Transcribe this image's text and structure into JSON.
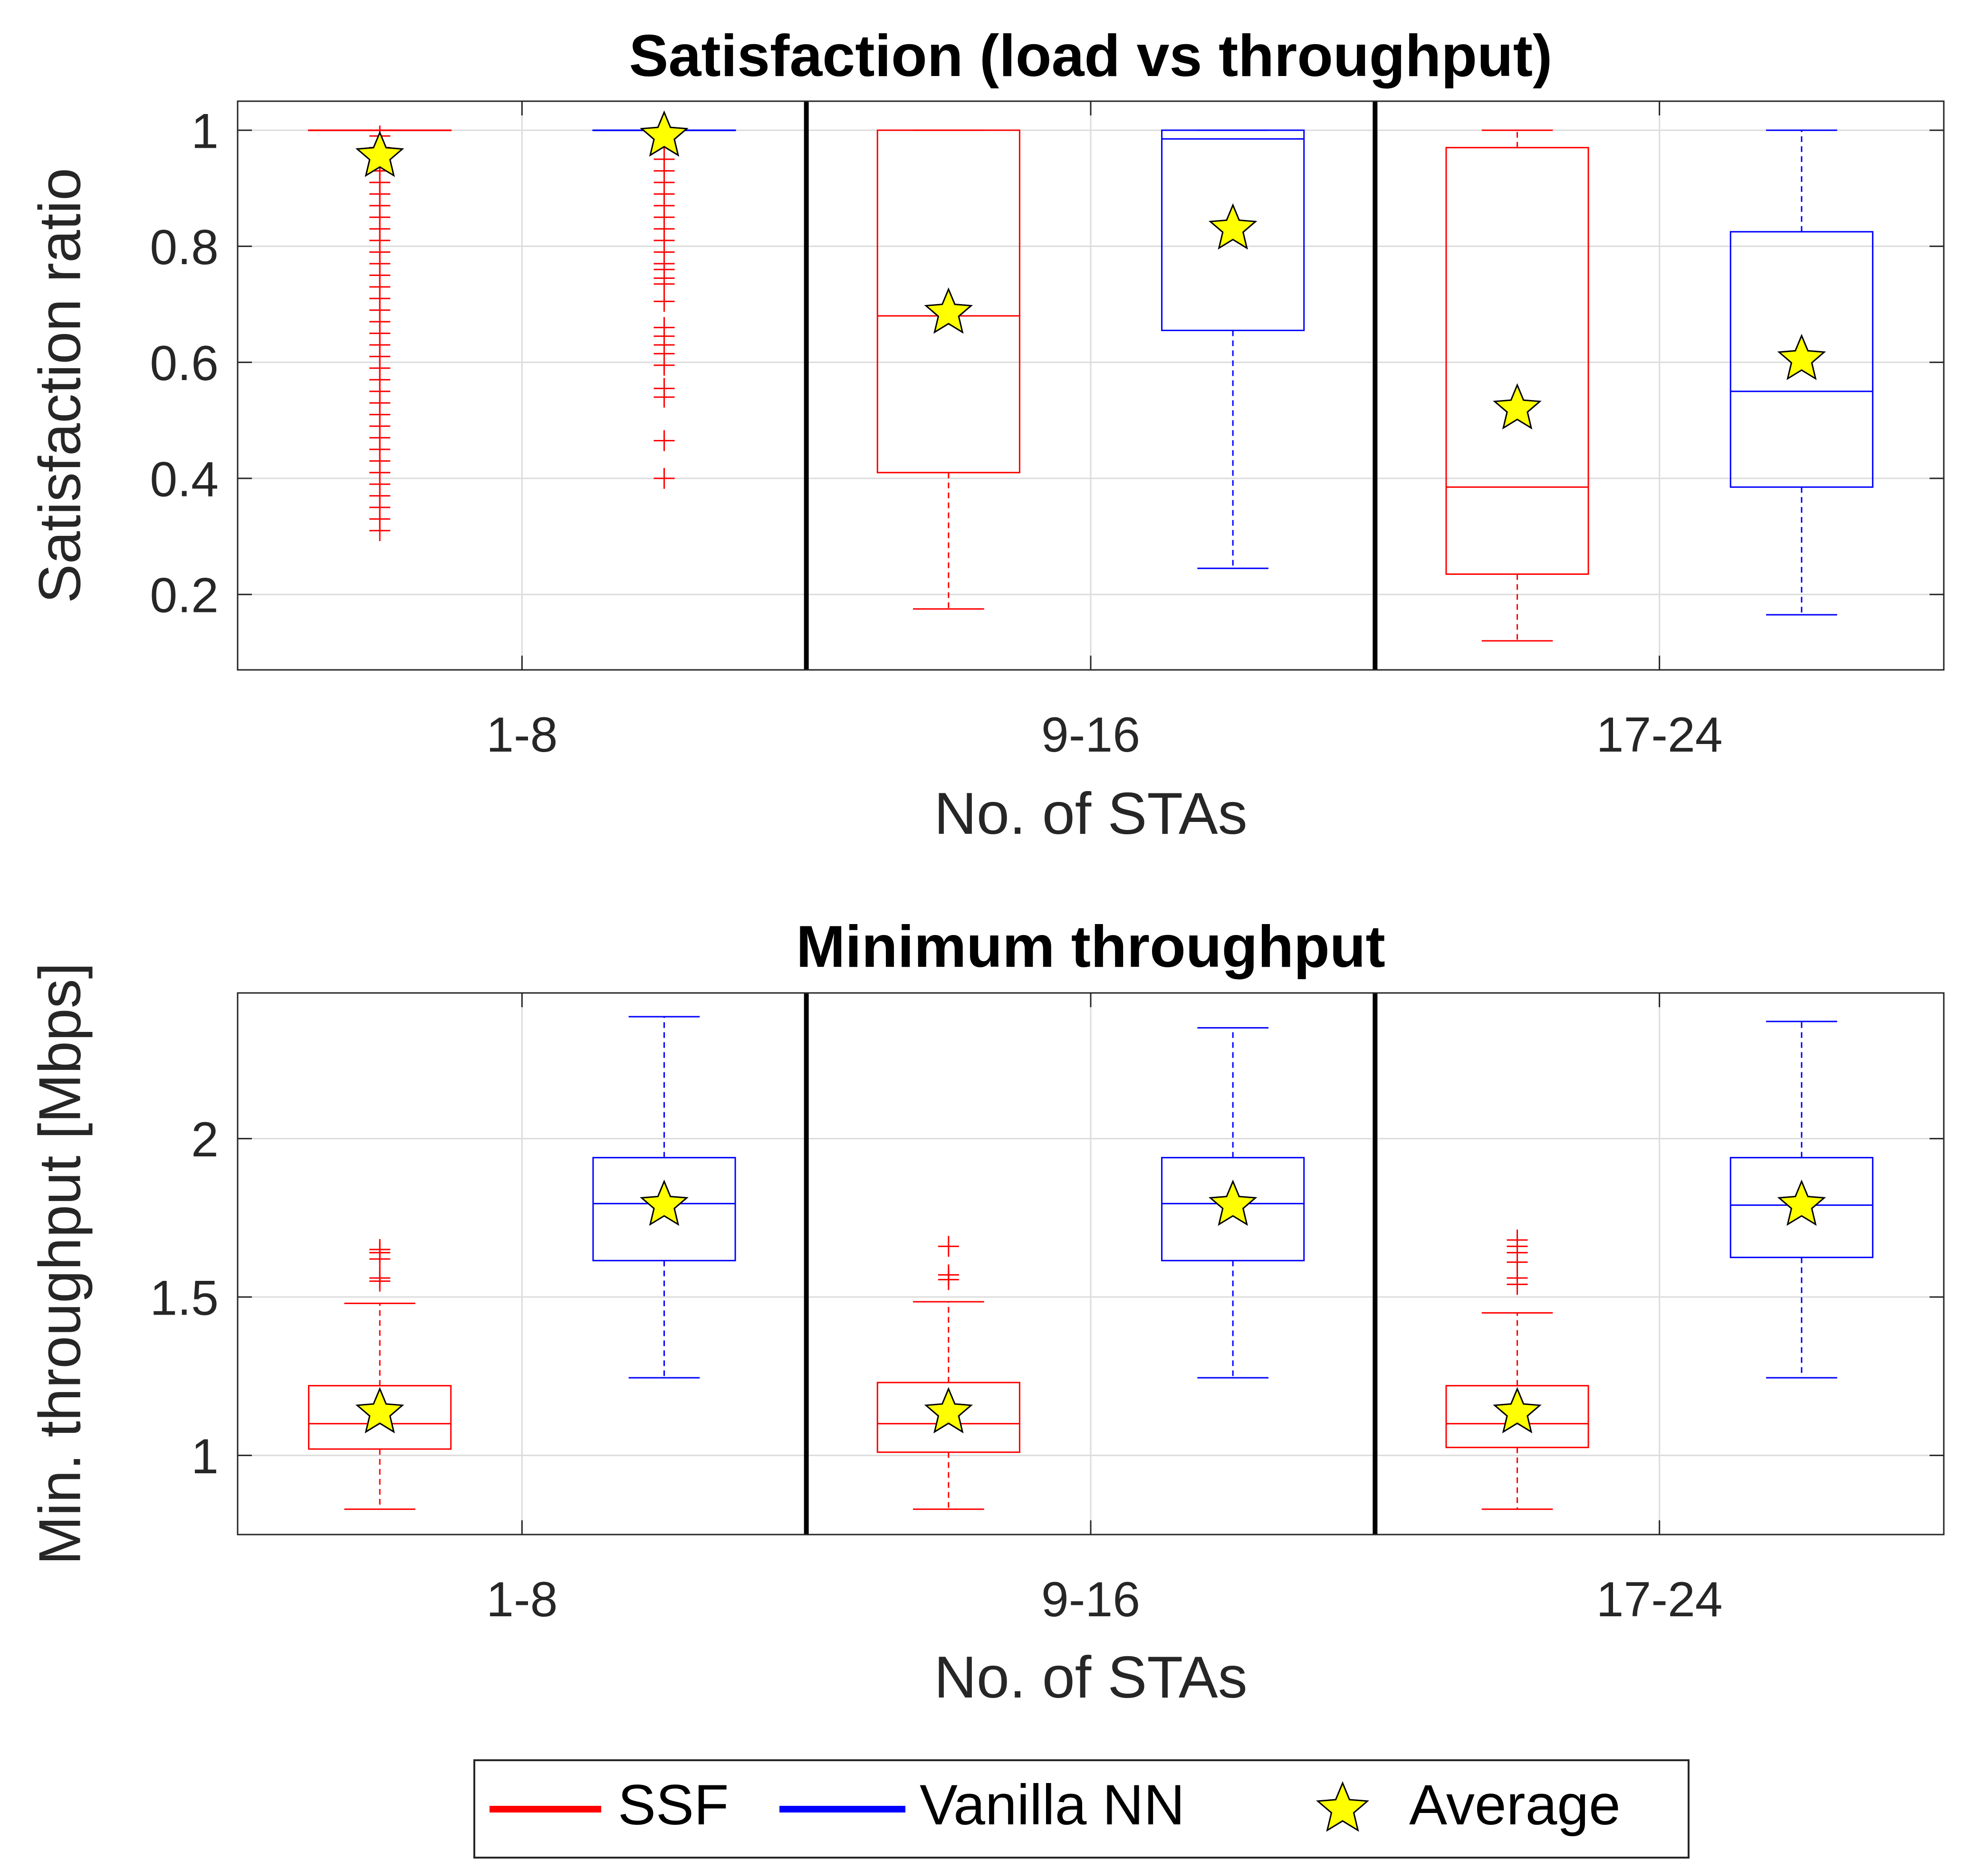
{
  "colors": {
    "ssf": "#ff0000",
    "vanilla": "#0000ff",
    "star_fill": "#ffff00",
    "star_stroke": "#000000",
    "grid": "#dcdcdc",
    "axis": "#262626",
    "separator": "#000000"
  },
  "legend": {
    "items": [
      {
        "label": "SSF",
        "type": "line",
        "color_key": "ssf"
      },
      {
        "label": "Vanilla NN",
        "type": "line",
        "color_key": "vanilla"
      },
      {
        "label": "Average",
        "type": "star"
      }
    ]
  },
  "chart_data": [
    {
      "type": "box",
      "title": "Satisfaction (load vs throughput)",
      "xlabel": "No. of STAs",
      "ylabel": "Satisfaction ratio",
      "categories": [
        "1-8",
        "9-16",
        "17-24"
      ],
      "ylim": [
        0.07,
        1.05
      ],
      "yticks": [
        0.2,
        0.4,
        0.6,
        0.8,
        1
      ],
      "ytick_labels": [
        "0.2",
        "0.4",
        "0.6",
        "0.8",
        "1"
      ],
      "grid": true,
      "series": [
        {
          "name": "SSF",
          "boxes": [
            {
              "category": "1-8",
              "min": 1.0,
              "q1": 1.0,
              "median": 1.0,
              "q3": 1.0,
              "max": 1.0,
              "mean": 0.955,
              "outliers": [
                0.31,
                0.33,
                0.35,
                0.37,
                0.39,
                0.41,
                0.43,
                0.45,
                0.47,
                0.49,
                0.51,
                0.53,
                0.55,
                0.57,
                0.59,
                0.61,
                0.63,
                0.65,
                0.67,
                0.69,
                0.71,
                0.73,
                0.75,
                0.77,
                0.79,
                0.81,
                0.83,
                0.85,
                0.87,
                0.89,
                0.91,
                0.93,
                0.95,
                0.97,
                0.99
              ]
            },
            {
              "category": "9-16",
              "min": 0.175,
              "q1": 0.41,
              "median": 0.68,
              "q3": 1.0,
              "max": 1.0,
              "mean": 0.685,
              "outliers": []
            },
            {
              "category": "17-24",
              "min": 0.12,
              "q1": 0.235,
              "median": 0.385,
              "q3": 0.97,
              "max": 1.0,
              "mean": 0.52,
              "outliers": []
            }
          ]
        },
        {
          "name": "Vanilla NN",
          "boxes": [
            {
              "category": "1-8",
              "min": 1.0,
              "q1": 1.0,
              "median": 1.0,
              "q3": 1.0,
              "max": 1.0,
              "mean": 0.99,
              "outliers": [
                0.4,
                0.465,
                0.54,
                0.555,
                0.595,
                0.615,
                0.63,
                0.645,
                0.66,
                0.705,
                0.735,
                0.745,
                0.76,
                0.77,
                0.79,
                0.81,
                0.83,
                0.85,
                0.87,
                0.89,
                0.91,
                0.93,
                0.95,
                0.97
              ]
            },
            {
              "category": "9-16",
              "min": 0.245,
              "q1": 0.655,
              "median": 0.985,
              "q3": 1.0,
              "max": 1.0,
              "mean": 0.83,
              "outliers": []
            },
            {
              "category": "17-24",
              "min": 0.165,
              "q1": 0.385,
              "median": 0.55,
              "q3": 0.825,
              "max": 1.0,
              "mean": 0.605,
              "outliers": []
            }
          ]
        }
      ]
    },
    {
      "type": "box",
      "title": "Minimum throughput",
      "xlabel": "No. of STAs",
      "ylabel": "Min. throughput [Mbps]",
      "categories": [
        "1-8",
        "9-16",
        "17-24"
      ],
      "ylim": [
        0.75,
        2.46
      ],
      "yticks": [
        1,
        1.5,
        2
      ],
      "ytick_labels": [
        "1",
        "1.5",
        "2"
      ],
      "grid": true,
      "series": [
        {
          "name": "SSF",
          "boxes": [
            {
              "category": "1-8",
              "min": 0.83,
              "q1": 1.02,
              "median": 1.1,
              "q3": 1.22,
              "max": 1.48,
              "mean": 1.135,
              "outliers": [
                1.55,
                1.56,
                1.62,
                1.64,
                1.65
              ]
            },
            {
              "category": "9-16",
              "min": 0.83,
              "q1": 1.01,
              "median": 1.1,
              "q3": 1.23,
              "max": 1.485,
              "mean": 1.135,
              "outliers": [
                1.555,
                1.57,
                1.66
              ]
            },
            {
              "category": "17-24",
              "min": 0.83,
              "q1": 1.025,
              "median": 1.1,
              "q3": 1.22,
              "max": 1.45,
              "mean": 1.135,
              "outliers": [
                1.54,
                1.56,
                1.61,
                1.64,
                1.66,
                1.68
              ]
            }
          ]
        },
        {
          "name": "Vanilla NN",
          "boxes": [
            {
              "category": "1-8",
              "min": 1.245,
              "q1": 1.615,
              "median": 1.795,
              "q3": 1.94,
              "max": 2.385,
              "mean": 1.79,
              "outliers": []
            },
            {
              "category": "9-16",
              "min": 1.245,
              "q1": 1.615,
              "median": 1.795,
              "q3": 1.94,
              "max": 2.35,
              "mean": 1.79,
              "outliers": []
            },
            {
              "category": "17-24",
              "min": 1.245,
              "q1": 1.625,
              "median": 1.79,
              "q3": 1.94,
              "max": 2.37,
              "mean": 1.79,
              "outliers": []
            }
          ]
        }
      ]
    }
  ]
}
